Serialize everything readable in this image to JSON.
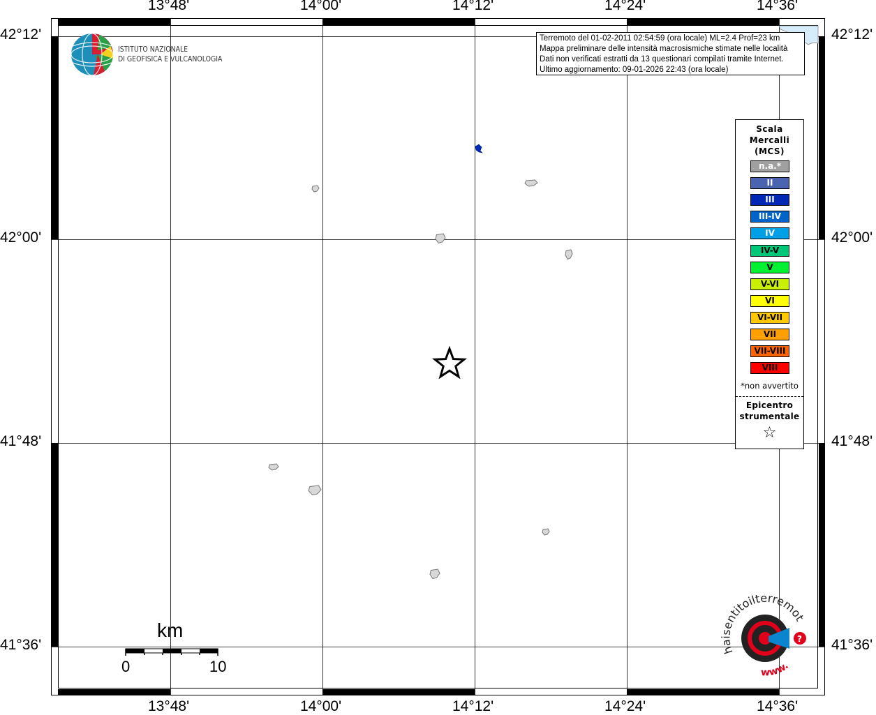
{
  "map": {
    "lon_labels": [
      "13°48'",
      "14°00'",
      "14°12'",
      "14°24'",
      "14°36'"
    ],
    "lat_labels": [
      "42°12'",
      "42°00'",
      "41°48'",
      "41°36'"
    ],
    "epicenter_symbol": "star",
    "sea_color": "#d6ecf8",
    "town_color": "#a0a0a0",
    "felt_color": "#0028b4"
  },
  "info_box": {
    "lines": [
      "Terremoto del 01-02-2011 02:54:59 (ora locale) ML=2.4 Prof=23 km",
      "Mappa preliminare delle intensità macrosismiche stimate nelle località",
      "Dati non verificati estratti da 13 questionari compilati tramite Internet.",
      "Ultimo aggiornamento: 09-01-2026 22:43 (ora locale)"
    ]
  },
  "logo_ingv": {
    "line1": "ISTITUTO NAZIONALE",
    "line2": "DI GEOFISICA E VULCANOLOGIA"
  },
  "logo_hsit": {
    "text": "haisentitoilterremoto.it",
    "www": "www."
  },
  "legend": {
    "title": [
      "Scala",
      "Mercalli",
      "(MCS)"
    ],
    "items": [
      {
        "label": "n.a.*",
        "color": "#a0a0a0",
        "text_color": "#ffffff"
      },
      {
        "label": "II",
        "color": "#4a64b0",
        "text_color": "#ffffff"
      },
      {
        "label": "III",
        "color": "#0028b4",
        "text_color": "#ffffff"
      },
      {
        "label": "III-IV",
        "color": "#0064c8",
        "text_color": "#ffffff"
      },
      {
        "label": "IV",
        "color": "#00a0e6",
        "text_color": "#ffffff"
      },
      {
        "label": "IV-V",
        "color": "#00c878",
        "text_color": "#000000"
      },
      {
        "label": "V",
        "color": "#00f032",
        "text_color": "#000000"
      },
      {
        "label": "V-VI",
        "color": "#c8f000",
        "text_color": "#000000"
      },
      {
        "label": "VI",
        "color": "#ffff00",
        "text_color": "#000000"
      },
      {
        "label": "VI-VII",
        "color": "#ffc800",
        "text_color": "#000000"
      },
      {
        "label": "VII",
        "color": "#ffa000",
        "text_color": "#000000"
      },
      {
        "label": "VII-VIII",
        "color": "#ff6400",
        "text_color": "#000000"
      },
      {
        "label": "VIII",
        "color": "#ff0000",
        "text_color": "#000000"
      }
    ],
    "note": "*non avvertito",
    "epicenter_label": [
      "Epicentro",
      "strumentale"
    ],
    "epicenter_symbol": "☆"
  },
  "scale_bar": {
    "unit": "km",
    "start": "0",
    "end": "10"
  }
}
